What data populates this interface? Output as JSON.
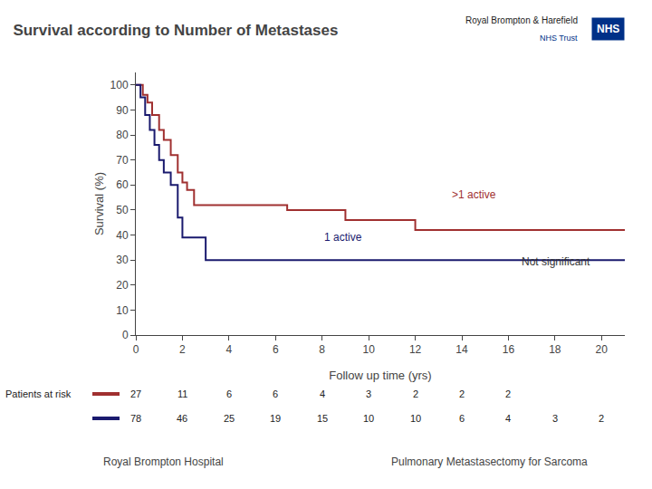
{
  "chart_data": {
    "type": "step",
    "title": "Survival according to Number of Metastases",
    "x_label": "Follow up time (yrs)",
    "y_label": "Survival (%)",
    "xlim": [
      0,
      21
    ],
    "ylim": [
      0,
      105
    ],
    "xticks": [
      0,
      2,
      4,
      6,
      8,
      10,
      12,
      14,
      16,
      18,
      20
    ],
    "yticks": [
      0,
      10,
      20,
      30,
      40,
      50,
      60,
      70,
      80,
      90,
      100
    ],
    "grid": false,
    "series": [
      {
        "color": "#a03030",
        "x": [
          0,
          0.3,
          0.5,
          0.7,
          1.0,
          1.2,
          1.5,
          1.8,
          2.0,
          2.2,
          2.5,
          3.0,
          3.5,
          4.0,
          6.0,
          6.5,
          8.5,
          9.0,
          11.5,
          12.0,
          21.0
        ],
        "values": [
          100,
          96,
          93,
          88,
          82,
          78,
          72,
          65,
          61,
          58,
          52,
          52,
          52,
          52,
          52,
          50,
          50,
          46,
          46,
          42,
          42
        ]
      },
      {
        "color": "#1a1a6e",
        "x": [
          0,
          0.2,
          0.4,
          0.6,
          0.8,
          1.0,
          1.2,
          1.5,
          1.8,
          2.0,
          2.2,
          2.5,
          2.8,
          3.0,
          3.5,
          4.0,
          6.0,
          6.5,
          21.0
        ],
        "values": [
          100,
          95,
          88,
          82,
          76,
          70,
          65,
          60,
          47,
          39,
          39,
          39,
          39,
          30,
          30,
          30,
          30,
          30,
          30
        ]
      }
    ],
    "annotations": [
      {
        "text": ">1 active",
        "x": 13.5,
        "y": 53,
        "color": "#a03030"
      },
      {
        "text": "1 active",
        "x": 8.0,
        "y": 36,
        "color": "#1a1a6e"
      },
      {
        "text": "Not significant",
        "x": 16.5,
        "y": 26,
        "color": "#333333"
      }
    ],
    "risk_table": {
      "label": "Patients at risk",
      "rows": [
        {
          "x": [
            0,
            2,
            4,
            6,
            8,
            10,
            12,
            14,
            16
          ],
          "values": [
            27,
            11,
            6,
            6,
            4,
            3,
            2,
            2,
            2
          ]
        },
        {
          "x": [
            0,
            2,
            4,
            6,
            8,
            10,
            12,
            14,
            16,
            18,
            20
          ],
          "values": [
            78,
            46,
            25,
            19,
            15,
            10,
            10,
            6,
            4,
            3,
            2
          ]
        }
      ]
    },
    "footer": [
      "Royal Brompton Hospital",
      "Pulmonary Metastasectomy for Sarcoma"
    ],
    "logo": {
      "org": "Royal Brompton & Harefield",
      "badge": "NHS",
      "trust": "NHS Trust",
      "color": "#003087"
    }
  }
}
